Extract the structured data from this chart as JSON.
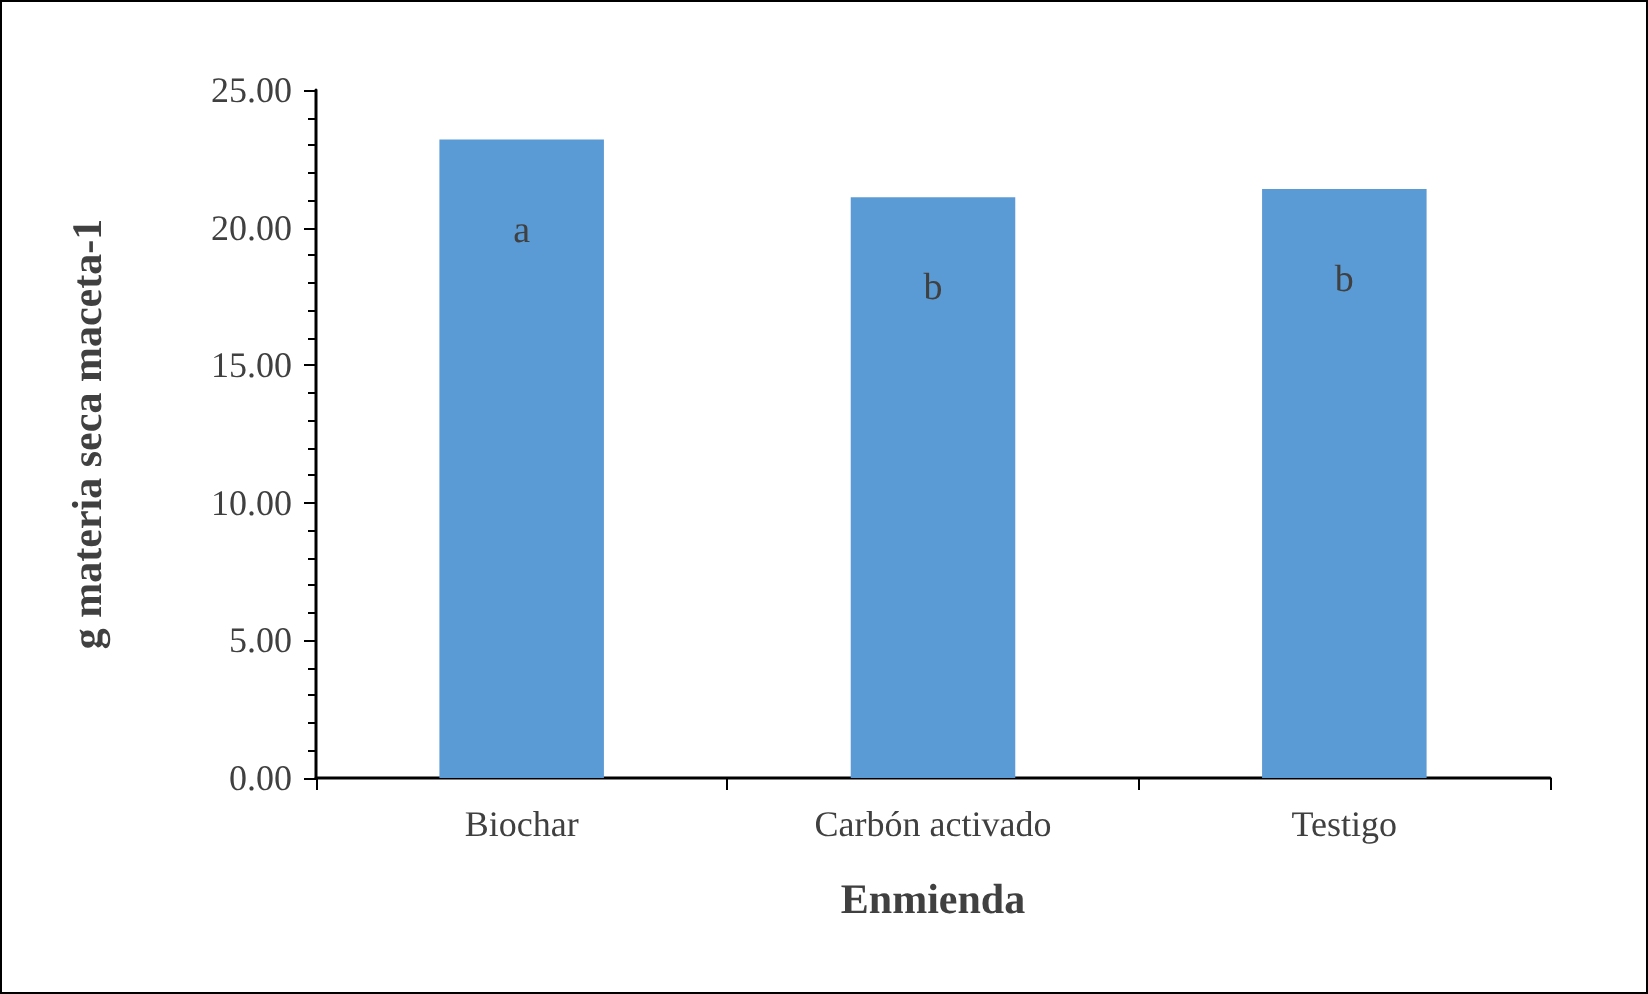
{
  "chart_data": {
    "type": "bar",
    "xlabel": "Enmienda",
    "ylabel": "g materia seca maceta-1",
    "categories": [
      "Biochar",
      "Carbón activado",
      "Testigo"
    ],
    "series": [
      {
        "color": "#5b9bd5",
        "values": [
          23.2,
          21.1,
          21.4
        ]
      }
    ],
    "ylim": [
      0,
      25
    ],
    "yticks": [
      {
        "value": 0,
        "label": "0.00"
      },
      {
        "value": 5,
        "label": "5.00"
      },
      {
        "value": 10,
        "label": "10.00"
      },
      {
        "value": 15,
        "label": "15.00"
      },
      {
        "value": 20,
        "label": "20.00"
      },
      {
        "value": 25,
        "label": "25.00"
      }
    ],
    "grid": false,
    "annotations": [
      "a",
      "b",
      "b"
    ]
  }
}
